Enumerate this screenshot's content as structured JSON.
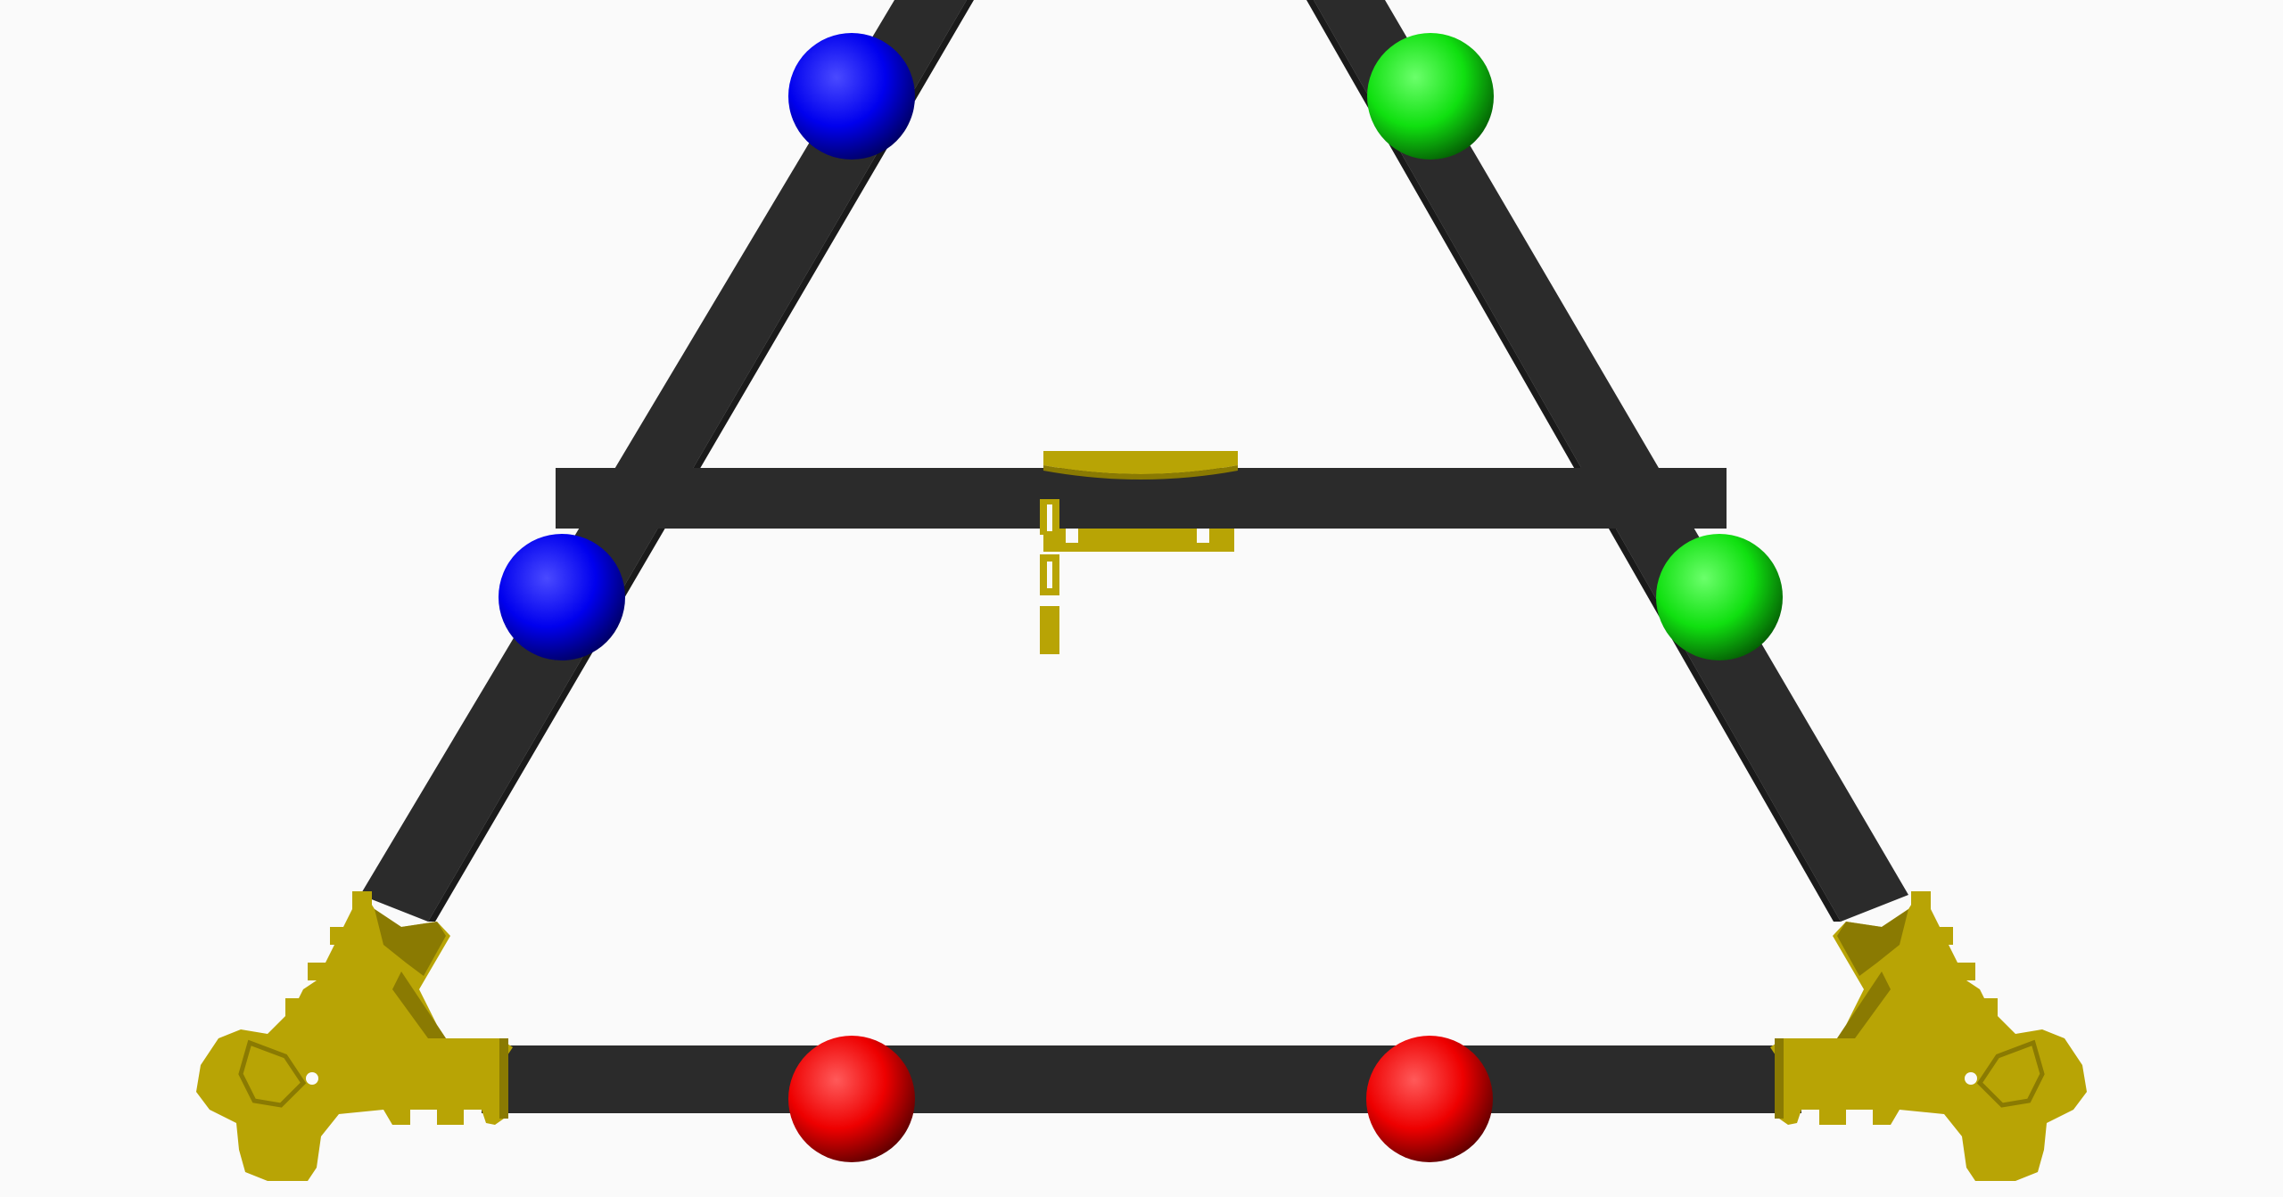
{
  "scene": {
    "view": "3D model render",
    "background_color": "#fafafa",
    "frame_color": "#2b2b2b",
    "part_color": "#b8a405",
    "part_shadow_color": "#8a7a02"
  },
  "spheres": {
    "blue_color": "#0a0ae6",
    "green_color": "#14e614",
    "red_color": "#f00a0a"
  },
  "icons": {
    "frame": "triangular-frame",
    "vertex_bracket": "corner-bracket-icon",
    "effector": "effector-plate-icon"
  }
}
